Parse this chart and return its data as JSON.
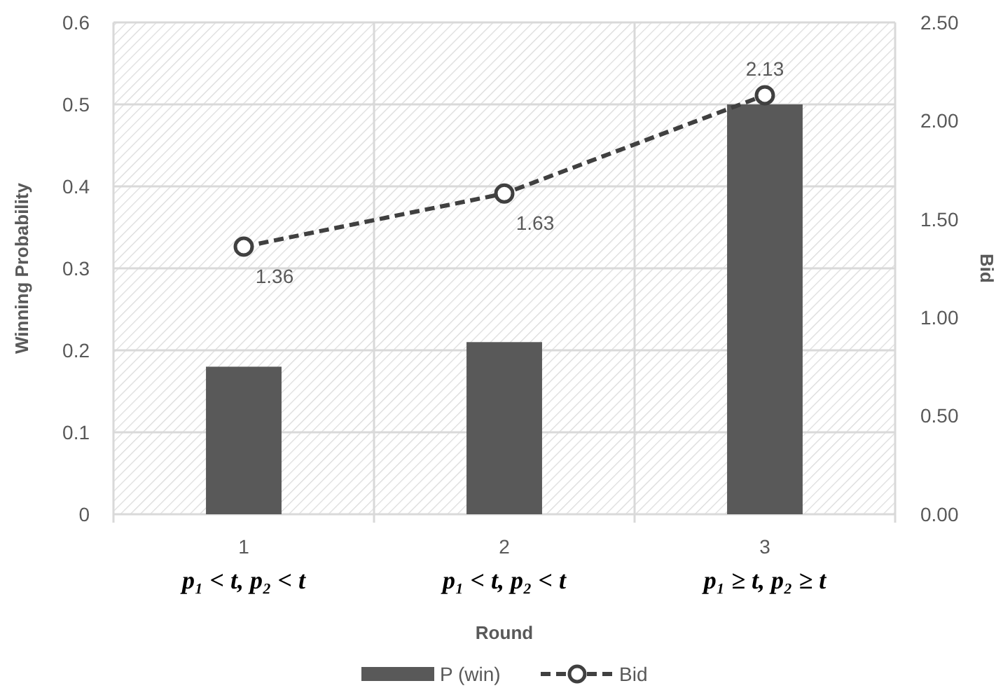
{
  "chart_data": {
    "type": "bar",
    "xlabel": "Round",
    "ylabel": "Winning Probability",
    "y2label": "Bid",
    "categories": [
      "1\np₁ < t, p₂ < t",
      "2\np₁ < t, p₂ < t",
      "3\np₁ ≥ t, p₂ ≥ t"
    ],
    "series": [
      {
        "name": "P (win)",
        "color": "#595959",
        "values": [
          0.18,
          0.21,
          0.5
        ]
      },
      {
        "name": "Bid",
        "type": "line",
        "axis": "y2",
        "color": "#404040",
        "values": [
          1.36,
          1.63,
          2.13
        ],
        "marker": "circle",
        "line_style": "dashed",
        "value_labels": [
          "1.36",
          "1.63",
          "2.13"
        ]
      }
    ],
    "ylim": [
      0,
      0.6
    ],
    "yticks": [
      {
        "value": 0,
        "label": "0"
      },
      0.1,
      0.2,
      0.3,
      0.4,
      0.5,
      0.6
    ],
    "y2lim": [
      0,
      2.5
    ],
    "y2ticks": [
      {
        "value": 0,
        "label": "0.00"
      },
      {
        "value": 0.5,
        "label": "0.50"
      },
      {
        "value": 1,
        "label": "1.00"
      },
      {
        "value": 1.5,
        "label": "1.50"
      },
      {
        "value": 2,
        "label": "2.00"
      },
      {
        "value": 2.5,
        "label": "2.50"
      }
    ],
    "grid": true,
    "legend": "bottom"
  }
}
